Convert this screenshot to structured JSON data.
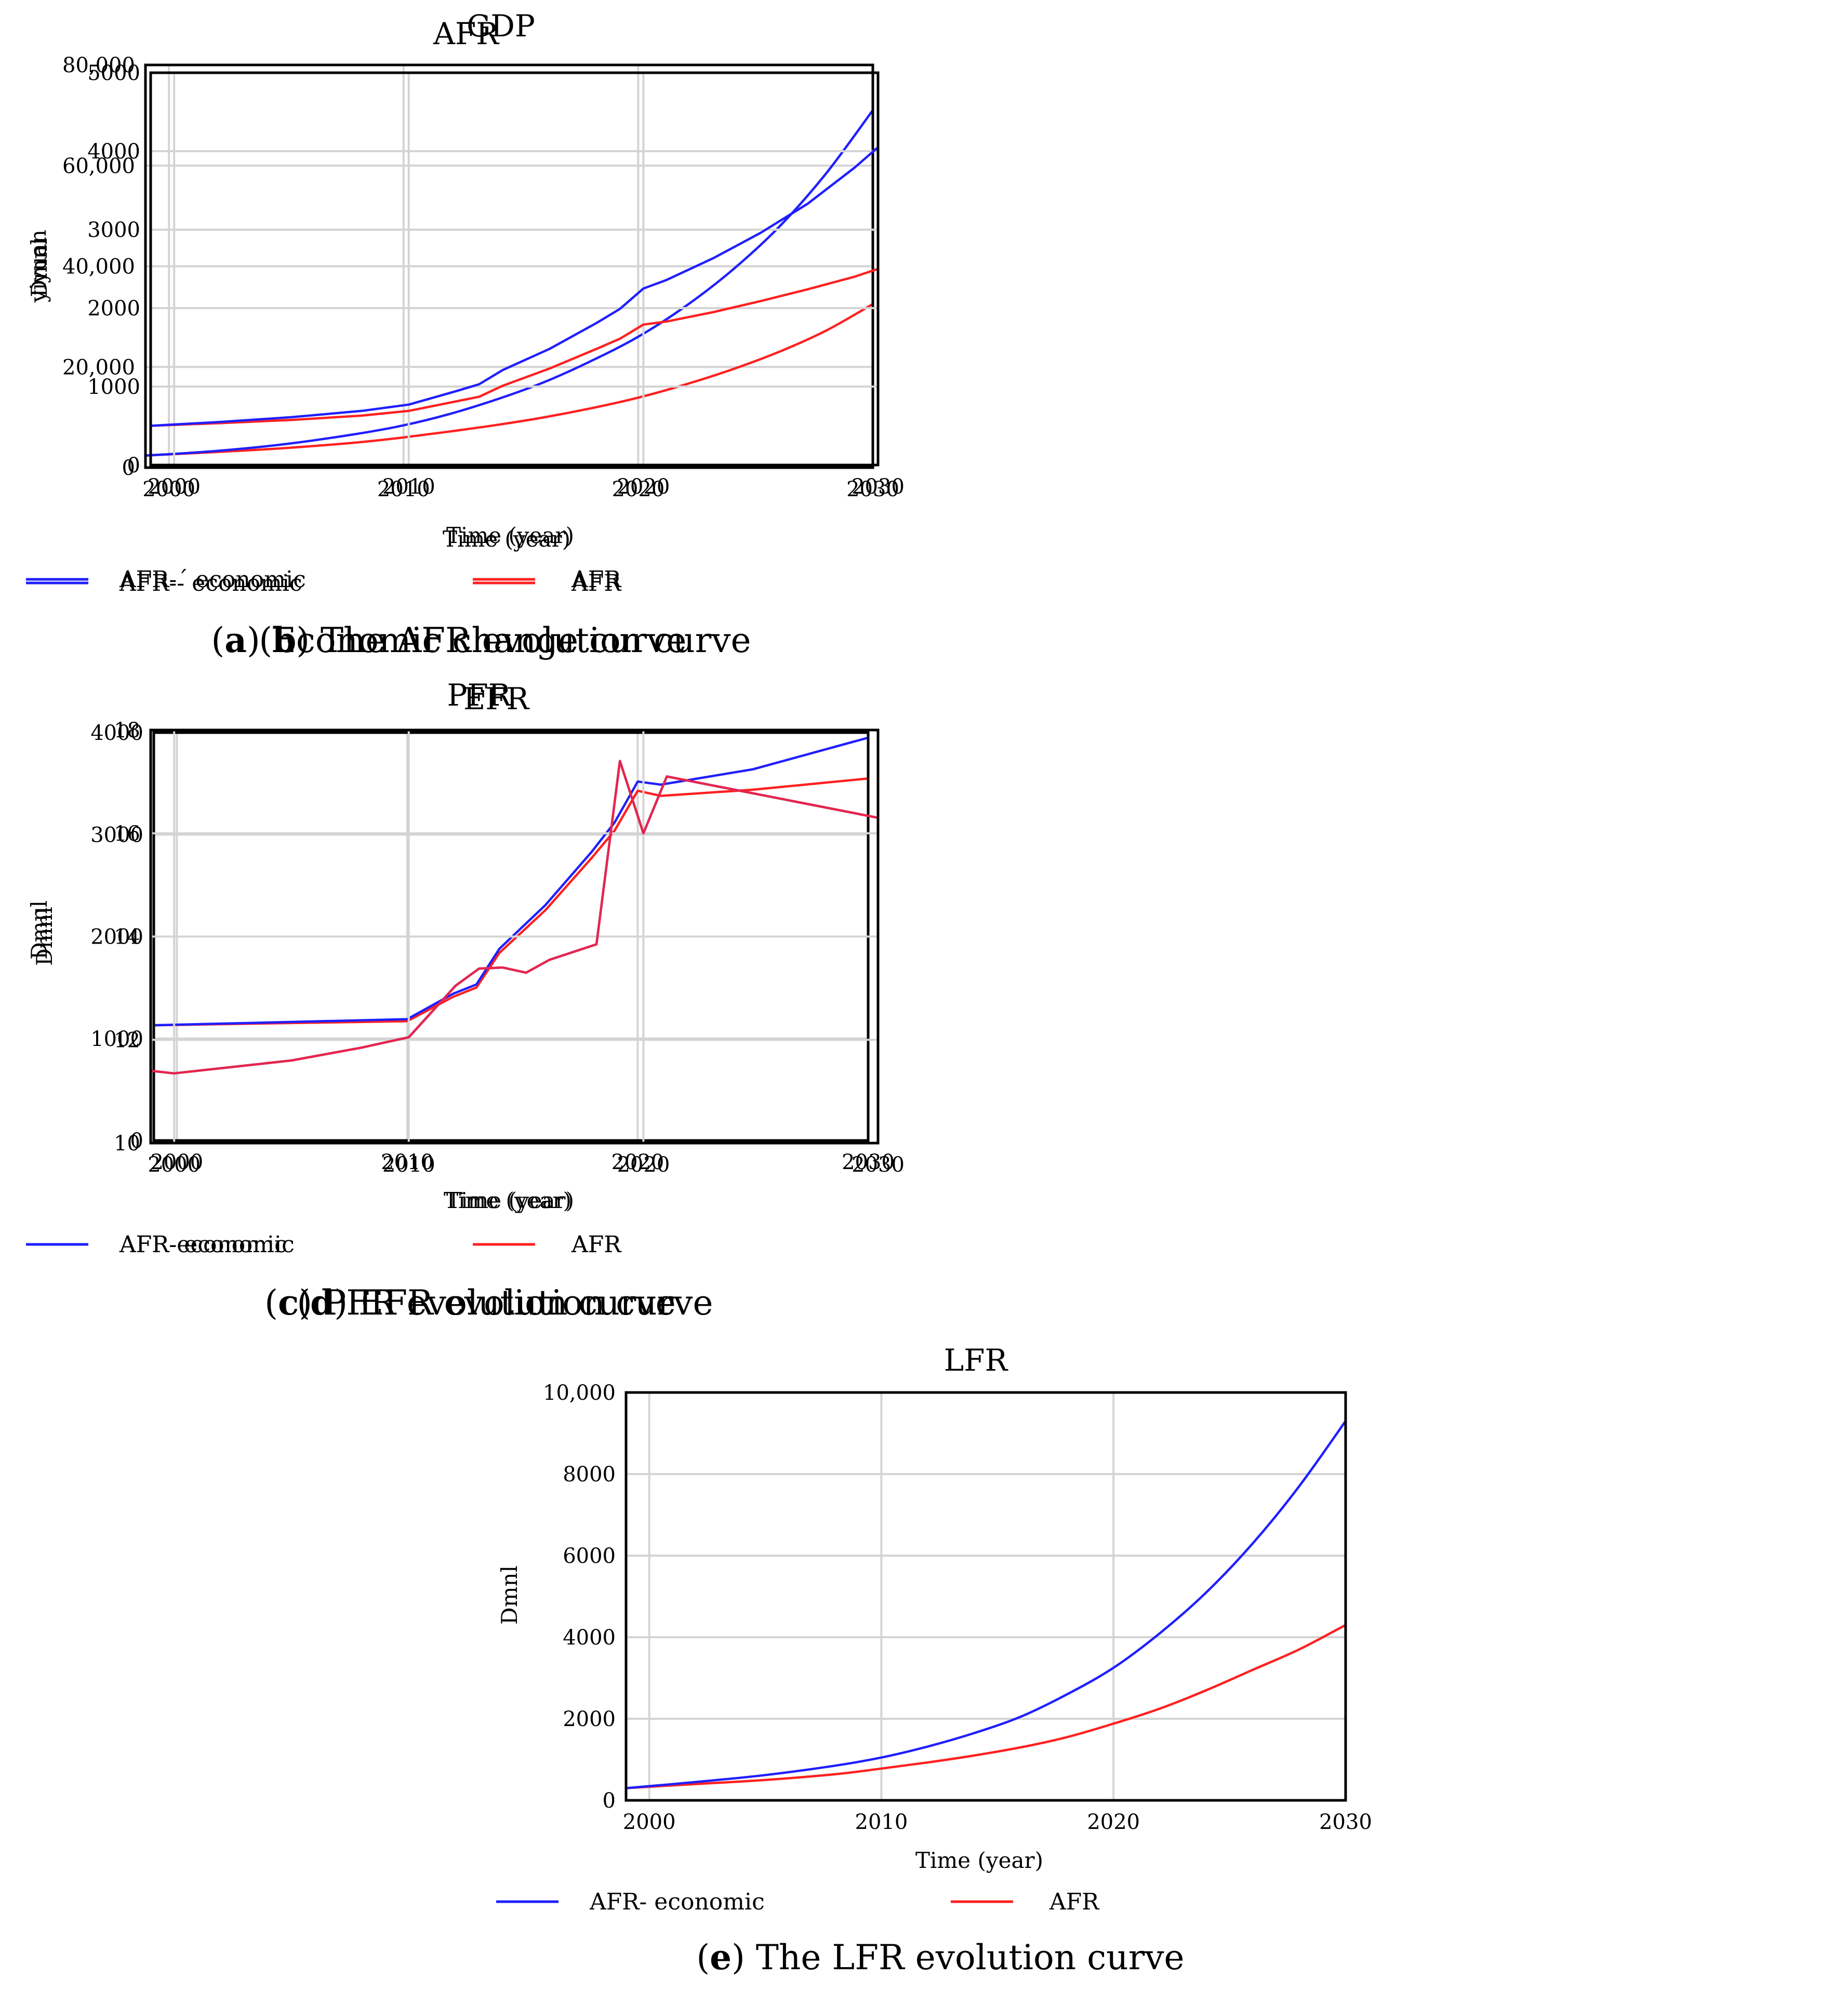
{
  "chart_data": [
    {
      "id": "a",
      "type": "line",
      "title": "GDP",
      "caption_letter": "a",
      "caption_text": " Economic change curve",
      "xlabel": "Time (year)",
      "ylabel": "yiyuan",
      "xlim": [
        1999,
        2030
      ],
      "ylim": [
        0,
        80000
      ],
      "xticks": [
        2000,
        2010,
        2020,
        2030
      ],
      "yticks": [
        0,
        20000,
        40000,
        60000,
        80000
      ],
      "ytick_labels": [
        "0",
        "20,000",
        "40,000",
        "60,000",
        "80,000"
      ],
      "series": [
        {
          "name": "AFR-- economic",
          "color": "#1f1fff",
          "curve": "smooth",
          "x": [
            1999,
            2002,
            2005,
            2008,
            2010,
            2012,
            2014,
            2016,
            2018,
            2020,
            2022,
            2024,
            2026,
            2028,
            2030
          ],
          "values": [
            2400,
            3300,
            4700,
            6700,
            8400,
            10700,
            13600,
            17000,
            21200,
            26000,
            32000,
            39200,
            47800,
            58400,
            71000
          ]
        },
        {
          "name": "AFR",
          "color": "#ff2020",
          "curve": "smooth",
          "x": [
            1999,
            2002,
            2005,
            2008,
            2010,
            2012,
            2014,
            2016,
            2018,
            2020,
            2022,
            2024,
            2026,
            2028,
            2030
          ],
          "values": [
            2400,
            3100,
            3900,
            5000,
            6000,
            7200,
            8500,
            10000,
            11800,
            13900,
            16500,
            19500,
            23000,
            27200,
            32500
          ]
        }
      ]
    },
    {
      "id": "b",
      "type": "line",
      "title": "AFR",
      "caption_letter": "b",
      "caption_text": " The AFR evolution curve",
      "xlabel": "Time (year)",
      "ylabel": "Dmnl",
      "xlim": [
        1999,
        2030
      ],
      "ylim": [
        0,
        5000
      ],
      "xticks": [
        2000,
        2010,
        2020,
        2030
      ],
      "yticks": [
        0,
        1000,
        2000,
        3000,
        4000,
        5000
      ],
      "ytick_labels": [
        "0",
        "1000",
        "2000",
        "3000",
        "4000",
        "5000"
      ],
      "series": [
        {
          "name": "AFR-´ economic",
          "color": "#1f1fff",
          "curve": "linear",
          "x": [
            1999,
            2002,
            2005,
            2008,
            2010,
            2012,
            2013,
            2014,
            2016,
            2018,
            2019,
            2020,
            2021,
            2023,
            2025,
            2027,
            2029,
            2030
          ],
          "values": [
            500,
            550,
            610,
            690,
            770,
            940,
            1030,
            1210,
            1480,
            1810,
            1990,
            2250,
            2360,
            2640,
            2960,
            3330,
            3790,
            4050
          ]
        },
        {
          "name": "AFR",
          "color": "#ff2020",
          "curve": "linear",
          "x": [
            1999,
            2002,
            2005,
            2008,
            2010,
            2012,
            2013,
            2014,
            2016,
            2018,
            2019,
            2020,
            2021,
            2023,
            2025,
            2027,
            2029,
            2030
          ],
          "values": [
            500,
            535,
            575,
            630,
            690,
            810,
            870,
            1010,
            1230,
            1480,
            1610,
            1790,
            1830,
            1950,
            2090,
            2240,
            2400,
            2500
          ]
        }
      ]
    },
    {
      "id": "c",
      "type": "line",
      "title": "PFR",
      "caption_letter": "c",
      "caption_text": " PFR evolution curve",
      "xlabel": "Time (year)",
      "ylabel": "Dmnl",
      "xlim": [
        1999,
        2030
      ],
      "ylim": [
        0,
        4000
      ],
      "xticks": [
        2000,
        2010,
        2020,
        2030
      ],
      "yticks": [
        0,
        1000,
        2000,
        3000,
        4000
      ],
      "ytick_labels": [
        "0",
        "1000",
        "2000",
        "3000",
        "4000"
      ],
      "series": [
        {
          "name": "AFR- economic",
          "color": "#1f1fff",
          "curve": "linear",
          "x": [
            1999,
            2010,
            2012,
            2013,
            2014,
            2016,
            2018,
            2019,
            2020,
            2021,
            2025,
            2030
          ],
          "values": [
            1130,
            1190,
            1440,
            1530,
            1880,
            2310,
            2830,
            3120,
            3520,
            3490,
            3640,
            3950
          ]
        },
        {
          "name": "AFR",
          "color": "#ff2020",
          "curve": "linear",
          "x": [
            1999,
            2010,
            2012,
            2013,
            2014,
            2016,
            2018,
            2019,
            2020,
            2021,
            2025,
            2030
          ],
          "values": [
            1130,
            1170,
            1410,
            1500,
            1840,
            2260,
            2770,
            3040,
            3430,
            3380,
            3440,
            3550
          ]
        }
      ]
    },
    {
      "id": "d",
      "type": "line",
      "title": "EFR",
      "caption_letter": "d",
      "caption_text": " EFR evolution curve",
      "xlabel": "Time (year)",
      "ylabel": "Dmnl",
      "xlim": [
        1999,
        2030
      ],
      "ylim": [
        10,
        18
      ],
      "xticks": [
        2000,
        2010,
        2020,
        2030
      ],
      "yticks": [
        10,
        12,
        14,
        16,
        18
      ],
      "ytick_labels": [
        "10",
        "12",
        "14",
        "16",
        "18"
      ],
      "series": [
        {
          "name": "AFR-economic",
          "color": "#1f1fff",
          "curve": "linear",
          "x": [
            1999,
            2000,
            2005,
            2008,
            2009,
            2010,
            2012,
            2013,
            2014,
            2015,
            2016,
            2018,
            2019,
            2020,
            2021,
            2030
          ],
          "values": [
            11.4,
            11.35,
            11.6,
            11.85,
            11.95,
            12.05,
            13.05,
            13.38,
            13.4,
            13.3,
            13.55,
            13.85,
            17.4,
            16.0,
            17.1,
            16.3
          ]
        },
        {
          "name": "AFR",
          "color": "#ff2020",
          "curve": "linear",
          "x": [
            1999,
            2000,
            2005,
            2008,
            2009,
            2010,
            2012,
            2013,
            2014,
            2015,
            2016,
            2018,
            2019,
            2020,
            2021,
            2030
          ],
          "values": [
            11.4,
            11.35,
            11.6,
            11.85,
            11.95,
            12.05,
            13.05,
            13.38,
            13.4,
            13.3,
            13.55,
            13.85,
            17.4,
            16.0,
            17.1,
            16.3
          ]
        }
      ]
    },
    {
      "id": "e",
      "type": "line",
      "title": "LFR",
      "caption_letter": "e",
      "caption_text": " The LFR evolution curve",
      "xlabel": "Time (year)",
      "ylabel": "Dmnl",
      "xlim": [
        1999,
        2030
      ],
      "ylim": [
        0,
        10000
      ],
      "xticks": [
        2000,
        2010,
        2020,
        2030
      ],
      "yticks": [
        0,
        2000,
        4000,
        6000,
        8000,
        10000
      ],
      "ytick_labels": [
        "0",
        "2000",
        "4000",
        "6000",
        "8000",
        "10,000"
      ],
      "series": [
        {
          "name": "AFR- economic",
          "color": "#1f1fff",
          "curve": "smooth",
          "x": [
            1999,
            2002,
            2005,
            2008,
            2010,
            2012,
            2014,
            2016,
            2018,
            2020,
            2022,
            2024,
            2026,
            2028,
            2030
          ],
          "values": [
            300,
            450,
            620,
            850,
            1050,
            1320,
            1650,
            2050,
            2600,
            3250,
            4100,
            5100,
            6300,
            7700,
            9300
          ]
        },
        {
          "name": "AFR",
          "color": "#ff2020",
          "curve": "smooth",
          "x": [
            1999,
            2002,
            2005,
            2008,
            2010,
            2012,
            2014,
            2016,
            2018,
            2020,
            2022,
            2024,
            2026,
            2028,
            2030
          ],
          "values": [
            300,
            400,
            500,
            640,
            780,
            930,
            1100,
            1300,
            1550,
            1880,
            2250,
            2700,
            3200,
            3700,
            4300
          ]
        }
      ]
    }
  ]
}
